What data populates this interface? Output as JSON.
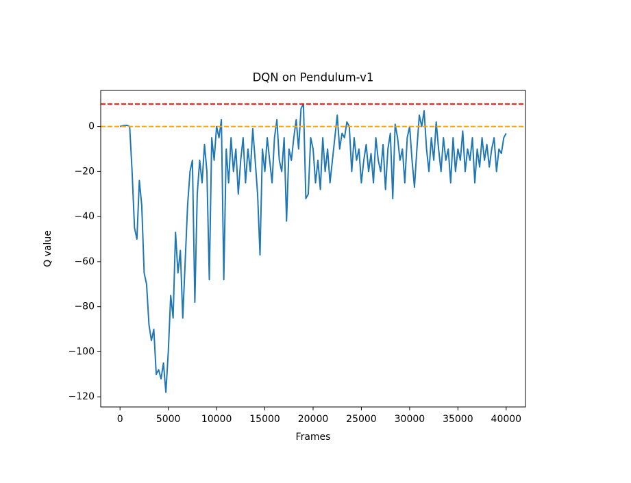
{
  "chart_data": {
    "type": "line",
    "title": "DQN on Pendulum-v1",
    "xlabel": "Frames",
    "ylabel": "Q value",
    "xlim": [
      -2000,
      42000
    ],
    "ylim": [
      -124.5,
      16
    ],
    "xticks": [
      0,
      5000,
      10000,
      15000,
      20000,
      25000,
      30000,
      35000,
      40000
    ],
    "yticks": [
      {
        "value": -120,
        "label": "−120"
      },
      {
        "value": -100,
        "label": "−100"
      },
      {
        "value": -80,
        "label": "−80"
      },
      {
        "value": -60,
        "label": "−60"
      },
      {
        "value": -40,
        "label": "−40"
      },
      {
        "value": -20,
        "label": "−20"
      },
      0
    ],
    "hlines": [
      {
        "value": 10,
        "color": "#ff0000"
      },
      {
        "value": 0,
        "color": "#ffa500"
      }
    ],
    "grid": false,
    "series": [
      {
        "color": "#1f77b4",
        "x": [
          0,
          250,
          500,
          750,
          1000,
          1250,
          1500,
          1750,
          2000,
          2250,
          2500,
          2750,
          3000,
          3250,
          3500,
          3750,
          4000,
          4250,
          4500,
          4750,
          5000,
          5250,
          5500,
          5750,
          6000,
          6250,
          6500,
          6750,
          7000,
          7250,
          7500,
          7750,
          8000,
          8250,
          8500,
          8750,
          9000,
          9250,
          9500,
          9750,
          10000,
          10250,
          10500,
          10750,
          11000,
          11250,
          11500,
          11750,
          12000,
          12250,
          12500,
          12750,
          13000,
          13250,
          13500,
          13750,
          14000,
          14250,
          14500,
          14750,
          15000,
          15250,
          15500,
          15750,
          16000,
          16250,
          16500,
          16750,
          17000,
          17250,
          17500,
          17750,
          18000,
          18250,
          18500,
          18750,
          19000,
          19250,
          19500,
          19750,
          20000,
          20250,
          20500,
          20750,
          21000,
          21250,
          21500,
          21750,
          22000,
          22250,
          22500,
          22750,
          23000,
          23250,
          23500,
          23750,
          24000,
          24250,
          24500,
          24750,
          25000,
          25250,
          25500,
          25750,
          26000,
          26250,
          26500,
          26750,
          27000,
          27250,
          27500,
          27750,
          28000,
          28250,
          28500,
          28750,
          29000,
          29250,
          29500,
          29750,
          30000,
          30250,
          30500,
          30750,
          31000,
          31250,
          31500,
          31750,
          32000,
          32250,
          32500,
          32750,
          33000,
          33250,
          33500,
          33750,
          34000,
          34250,
          34500,
          34750,
          35000,
          35250,
          35500,
          35750,
          36000,
          36250,
          36500,
          36750,
          37000,
          37250,
          37500,
          37750,
          38000,
          38250,
          38500,
          38750,
          39000,
          39250,
          39500,
          39750,
          40000
        ],
        "values": [
          0,
          0.3,
          0.5,
          0.5,
          0,
          -20,
          -45,
          -50,
          -24,
          -35,
          -65,
          -70,
          -88,
          -95,
          -90,
          -110,
          -108,
          -112,
          -105,
          -118,
          -100,
          -75,
          -85,
          -47,
          -65,
          -55,
          -85,
          -60,
          -35,
          -20,
          -15,
          -78,
          -30,
          -15,
          -25,
          -8,
          -20,
          -68,
          -5,
          -15,
          0,
          -5,
          3,
          -68,
          -10,
          -25,
          -5,
          -20,
          -10,
          -30,
          -15,
          -5,
          -25,
          -10,
          -20,
          -1,
          -15,
          -30,
          -57,
          -10,
          -20,
          -5,
          -15,
          -25,
          -5,
          3,
          -15,
          -20,
          -5,
          -42,
          -10,
          -15,
          -5,
          3,
          -10,
          8,
          10,
          -32,
          -30,
          -5,
          -10,
          -25,
          -15,
          -28,
          -5,
          -20,
          -10,
          -25,
          -15,
          -5,
          5,
          -10,
          -3,
          -5,
          2,
          0,
          -20,
          -5,
          -15,
          -10,
          -25,
          -15,
          -8,
          -20,
          -12,
          -25,
          -5,
          -15,
          -20,
          -8,
          -28,
          -10,
          -3,
          -32,
          1,
          -5,
          -15,
          -10,
          -25,
          -5,
          0,
          -15,
          -27,
          -10,
          5,
          0,
          7,
          -10,
          -20,
          -5,
          -15,
          2,
          -10,
          -20,
          -5,
          -15,
          -10,
          -25,
          -5,
          -20,
          -10,
          -15,
          -2,
          -20,
          -10,
          -15,
          -5,
          -25,
          -10,
          -18,
          -5,
          -15,
          -8,
          -18,
          -10,
          -5,
          -20,
          -10,
          -12,
          -5,
          -3
        ]
      }
    ]
  }
}
